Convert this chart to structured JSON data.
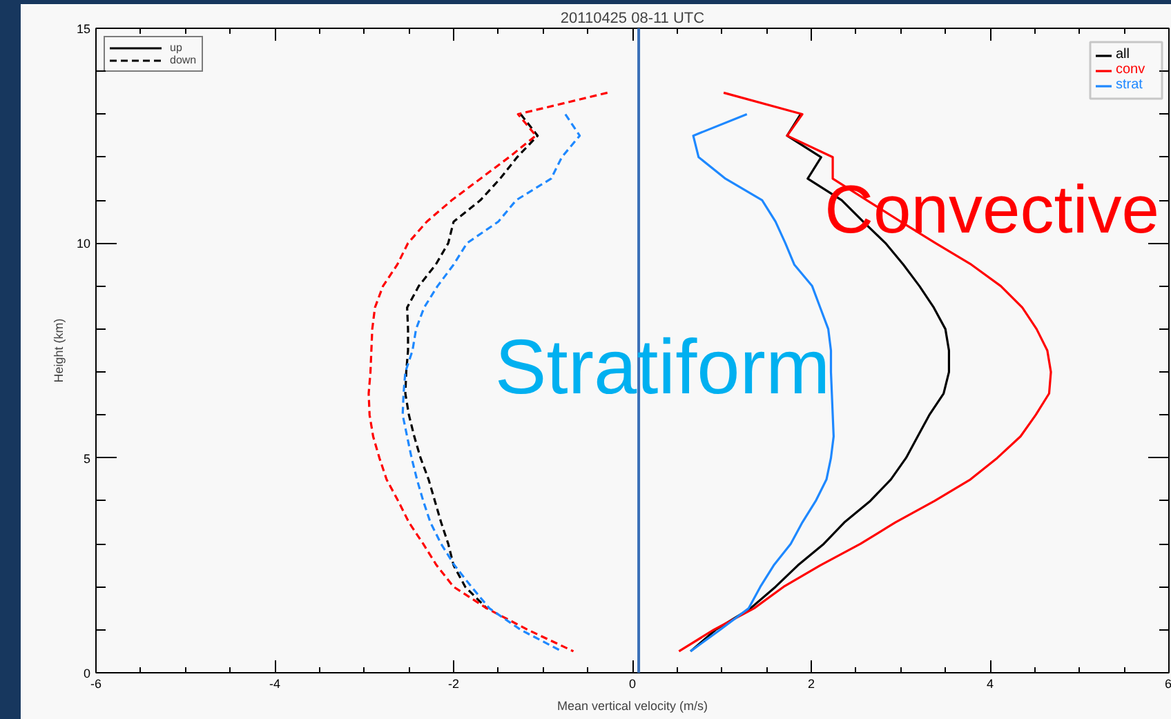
{
  "chart_data": {
    "type": "line",
    "title": "20110425 08-11 UTC",
    "xlabel": "Mean vertical velocity (m/s)",
    "ylabel": "Height (km)",
    "xlim": [
      -6,
      6
    ],
    "ylim": [
      0,
      15
    ],
    "xticks": [
      -6,
      {
        "value": -5.5,
        "label": null
      },
      {
        "value": -5,
        "label": null
      },
      {
        "value": -4.5,
        "label": null
      },
      -4,
      {
        "value": -3.5,
        "label": null
      },
      {
        "value": -3,
        "label": null
      },
      {
        "value": -2.5,
        "label": null
      },
      -2,
      {
        "value": -1.5,
        "label": null
      },
      {
        "value": -1,
        "label": null
      },
      {
        "value": -0.5,
        "label": null
      },
      0,
      {
        "value": 0.5,
        "label": null
      },
      {
        "value": 1,
        "label": null
      },
      {
        "value": 1.5,
        "label": null
      },
      2,
      {
        "value": 2.5,
        "label": null
      },
      {
        "value": 3,
        "label": null
      },
      {
        "value": 3.5,
        "label": null
      },
      4,
      {
        "value": 4.5,
        "label": null
      },
      {
        "value": 5,
        "label": null
      },
      {
        "value": 5.5,
        "label": null
      },
      6
    ],
    "yticks": [
      0,
      {
        "value": 1,
        "label": null
      },
      {
        "value": 2,
        "label": null
      },
      {
        "value": 3,
        "label": null
      },
      {
        "value": 4,
        "label": null
      },
      5,
      {
        "value": 6,
        "label": null
      },
      {
        "value": 7,
        "label": null
      },
      {
        "value": 8,
        "label": null
      },
      {
        "value": 9,
        "label": null
      },
      10,
      {
        "value": 11,
        "label": null
      },
      {
        "value": 12,
        "label": null
      },
      {
        "value": 13,
        "label": null
      },
      {
        "value": 14,
        "label": null
      },
      15
    ],
    "series": [
      {
        "name": "all",
        "color": "#000000",
        "line_style": "solid",
        "x": [
          1.88,
          1.73,
          2.11,
          1.96,
          2.34,
          2.58,
          2.83,
          3.03,
          3.21,
          3.37,
          3.5,
          3.54,
          3.54,
          3.48,
          3.32,
          3.19,
          3.06,
          2.89,
          2.66,
          2.37,
          2.14,
          1.85,
          1.6,
          1.32,
          0.93,
          0.65
        ],
        "values": [
          13.0,
          12.5,
          12.0,
          11.5,
          11.0,
          10.5,
          10.0,
          9.5,
          9.0,
          8.5,
          8.0,
          7.5,
          7.0,
          6.5,
          6.0,
          5.5,
          5.0,
          4.5,
          4.0,
          3.5,
          3.0,
          2.5,
          2.0,
          1.5,
          1.0,
          0.5
        ]
      },
      {
        "name": "conv",
        "color": "#ff0000",
        "line_style": "solid",
        "x": [
          1.02,
          1.9,
          1.73,
          2.24,
          2.24,
          2.62,
          3.0,
          3.39,
          3.79,
          4.12,
          4.36,
          4.52,
          4.64,
          4.68,
          4.66,
          4.51,
          4.34,
          4.08,
          3.78,
          3.38,
          2.94,
          2.55,
          2.1,
          1.69,
          1.36,
          0.91,
          0.52
        ],
        "values": [
          13.5,
          13.0,
          12.5,
          12.0,
          11.5,
          11.0,
          10.5,
          10.0,
          9.5,
          9.0,
          8.5,
          8.0,
          7.5,
          7.0,
          6.5,
          6.0,
          5.5,
          5.0,
          4.5,
          4.0,
          3.5,
          3.0,
          2.5,
          2.0,
          1.5,
          1.0,
          0.5
        ]
      },
      {
        "name": "strat",
        "color": "#1e88ff",
        "line_style": "solid",
        "x": [
          1.28,
          0.68,
          0.74,
          1.04,
          1.45,
          1.6,
          1.71,
          1.81,
          2.01,
          2.1,
          2.19,
          2.22,
          2.22,
          2.23,
          2.24,
          2.25,
          2.22,
          2.17,
          2.05,
          1.9,
          1.77,
          1.58,
          1.43,
          1.3,
          0.98,
          0.65
        ],
        "values": [
          13.0,
          12.5,
          12.0,
          11.5,
          11.0,
          10.5,
          10.0,
          9.5,
          9.0,
          8.5,
          8.0,
          7.5,
          7.0,
          6.5,
          6.0,
          5.5,
          5.0,
          4.5,
          4.0,
          3.5,
          3.0,
          2.5,
          2.0,
          1.5,
          1.0,
          0.5
        ]
      },
      {
        "color": "#000000",
        "line_style": "dashed",
        "x": [
          -1.25,
          -1.06,
          -1.29,
          -1.48,
          -1.7,
          -2.0,
          -2.06,
          -2.2,
          -2.39,
          -2.52,
          -2.51,
          -2.51,
          -2.53,
          -2.54,
          -2.5,
          -2.44,
          -2.37,
          -2.28,
          -2.21,
          -2.14,
          -2.06,
          -2.0,
          -1.87,
          -1.63
        ],
        "values": [
          13.0,
          12.5,
          12.0,
          11.5,
          11.0,
          10.5,
          10.0,
          9.5,
          9.0,
          8.5,
          8.0,
          7.5,
          7.0,
          6.5,
          6.0,
          5.5,
          5.0,
          4.5,
          4.0,
          3.5,
          3.0,
          2.5,
          2.0,
          1.5
        ]
      },
      {
        "color": "#ff0000",
        "line_style": "dashed",
        "x": [
          -0.28,
          -1.28,
          -1.08,
          -1.38,
          -1.7,
          -2.02,
          -2.3,
          -2.51,
          -2.63,
          -2.79,
          -2.88,
          -2.91,
          -2.92,
          -2.93,
          -2.95,
          -2.94,
          -2.9,
          -2.83,
          -2.75,
          -2.62,
          -2.5,
          -2.34,
          -2.19,
          -2.0,
          -1.63,
          -1.17,
          -0.66
        ],
        "values": [
          13.5,
          13.0,
          12.5,
          12.0,
          11.5,
          11.0,
          10.5,
          10.0,
          9.5,
          9.0,
          8.5,
          8.0,
          7.5,
          7.0,
          6.5,
          6.0,
          5.5,
          5.0,
          4.5,
          4.0,
          3.5,
          3.0,
          2.5,
          2.0,
          1.5,
          1.0,
          0.5
        ]
      },
      {
        "color": "#1e88ff",
        "line_style": "dashed",
        "x": [
          -0.75,
          -0.59,
          -0.79,
          -0.91,
          -1.3,
          -1.5,
          -1.85,
          -2.0,
          -2.18,
          -2.33,
          -2.42,
          -2.46,
          -2.54,
          -2.56,
          -2.57,
          -2.52,
          -2.47,
          -2.41,
          -2.34,
          -2.26,
          -2.14,
          -1.99,
          -1.8,
          -1.6,
          -1.25,
          -0.79
        ],
        "values": [
          13.0,
          12.5,
          12.0,
          11.5,
          11.0,
          10.5,
          10.0,
          9.5,
          9.0,
          8.5,
          8.0,
          7.5,
          7.0,
          6.5,
          6.0,
          5.5,
          5.0,
          4.5,
          4.0,
          3.5,
          3.0,
          2.5,
          2.0,
          1.5,
          1.0,
          0.5
        ]
      }
    ],
    "ref_lines": [
      {
        "axis": "x",
        "value": 0.07,
        "color": "#3a6fb8"
      }
    ],
    "annotations": [
      "up",
      "down",
      "Stratiform",
      "Convective"
    ],
    "legend": "top right"
  }
}
